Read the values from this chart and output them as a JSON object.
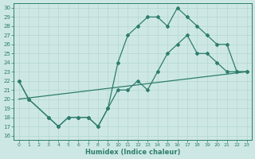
{
  "xlabel": "Humidex (Indice chaleur)",
  "xlim": [
    -0.5,
    23.5
  ],
  "ylim": [
    15.5,
    30.5
  ],
  "yticks": [
    16,
    17,
    18,
    19,
    20,
    21,
    22,
    23,
    24,
    25,
    26,
    27,
    28,
    29,
    30
  ],
  "xticks": [
    0,
    1,
    2,
    3,
    4,
    5,
    6,
    7,
    8,
    9,
    10,
    11,
    12,
    13,
    14,
    15,
    16,
    17,
    18,
    19,
    20,
    21,
    22,
    23
  ],
  "line_color": "#2e7d6d",
  "bg_color": "#cde8e4",
  "grid_color": "#b8d8d4",
  "line1_x": [
    0,
    1,
    3,
    4,
    5,
    6,
    7,
    8,
    9,
    10,
    11,
    12,
    13,
    14,
    15,
    16,
    17,
    18,
    19,
    20,
    21,
    22,
    23
  ],
  "line1_y": [
    22,
    20,
    18,
    17,
    18,
    18,
    18,
    17,
    19,
    24,
    27,
    28,
    29,
    29,
    28,
    30,
    29,
    28,
    27,
    26,
    26,
    23,
    23
  ],
  "line2_x": [
    0,
    1,
    3,
    4,
    5,
    6,
    7,
    8,
    9,
    10,
    11,
    12,
    13,
    14,
    15,
    16,
    17,
    18,
    19,
    20,
    21,
    22,
    23
  ],
  "line2_y": [
    22,
    20,
    18,
    17,
    18,
    18,
    18,
    17,
    19,
    21,
    21,
    22,
    21,
    23,
    25,
    26,
    27,
    25,
    25,
    24,
    23,
    23,
    23
  ],
  "line3_x": [
    0,
    23
  ],
  "line3_y": [
    20,
    23
  ],
  "marker": "D",
  "markersize": 2,
  "linewidth": 0.9
}
